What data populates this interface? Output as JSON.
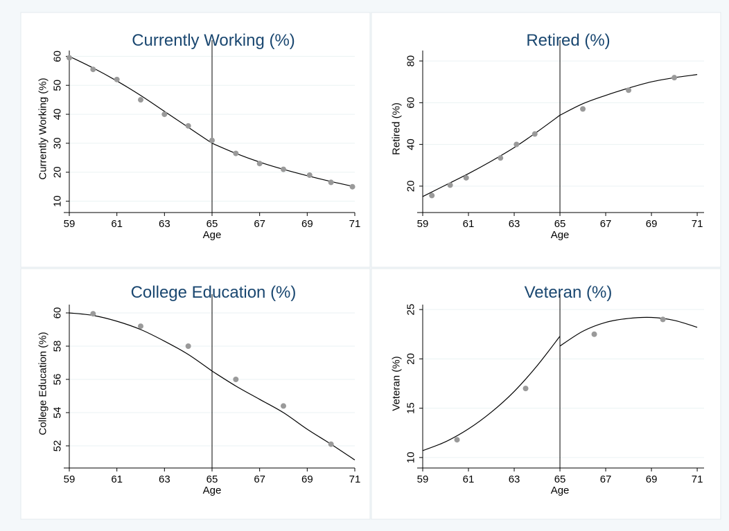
{
  "chart_data": [
    {
      "type": "scatter",
      "title": "Currently Working (%)",
      "xlabel": "Age",
      "ylabel": "Currently Working (%)",
      "xlim": [
        59,
        71
      ],
      "ylim": [
        8,
        62
      ],
      "xticks": [
        59,
        61,
        63,
        65,
        67,
        69,
        71
      ],
      "yticks": [
        10,
        20,
        30,
        40,
        50,
        60
      ],
      "grid": true,
      "cutoff": 65,
      "points": [
        [
          59.0,
          59.5
        ],
        [
          60.0,
          55.5
        ],
        [
          61.0,
          52.0
        ],
        [
          62.0,
          45.0
        ],
        [
          63.0,
          40.0
        ],
        [
          64.0,
          36.0
        ],
        [
          65.0,
          31.0
        ],
        [
          66.0,
          26.5
        ],
        [
          67.0,
          23.0
        ],
        [
          68.0,
          21.0
        ],
        [
          69.1,
          19.0
        ],
        [
          70.0,
          16.5
        ],
        [
          70.9,
          15.0
        ]
      ],
      "fit_left": [
        [
          59,
          60.0
        ],
        [
          60,
          56.0
        ],
        [
          61,
          51.5
        ],
        [
          62,
          46.5
        ],
        [
          63,
          41.0
        ],
        [
          64,
          35.5
        ],
        [
          65,
          30.0
        ]
      ],
      "fit_right": [
        [
          65,
          30.0
        ],
        [
          66,
          26.5
        ],
        [
          67,
          23.5
        ],
        [
          68,
          21.0
        ],
        [
          69,
          18.8
        ],
        [
          70,
          16.8
        ],
        [
          71,
          15.0
        ]
      ]
    },
    {
      "type": "scatter",
      "title": "Retired (%)",
      "xlabel": "Age",
      "ylabel": "Retired (%)",
      "xlim": [
        59,
        71.3
      ],
      "ylim": [
        10,
        85
      ],
      "xticks": [
        59,
        61,
        63,
        65,
        67,
        69,
        71
      ],
      "yticks": [
        20,
        40,
        60,
        80
      ],
      "grid": true,
      "cutoff": 65,
      "points": [
        [
          59.4,
          15.5
        ],
        [
          60.2,
          20.5
        ],
        [
          60.9,
          24.0
        ],
        [
          62.4,
          33.5
        ],
        [
          63.1,
          40.0
        ],
        [
          63.9,
          45.0
        ],
        [
          66.0,
          57.0
        ],
        [
          68.0,
          66.0
        ],
        [
          70.0,
          72.0
        ]
      ],
      "fit_left": [
        [
          59,
          15.0
        ],
        [
          60,
          20.5
        ],
        [
          61,
          26.0
        ],
        [
          62,
          32.0
        ],
        [
          63,
          38.5
        ],
        [
          64,
          46.0
        ],
        [
          65,
          54.0
        ]
      ],
      "fit_right": [
        [
          65,
          54.0
        ],
        [
          66,
          59.5
        ],
        [
          67,
          63.5
        ],
        [
          68,
          67.0
        ],
        [
          69,
          70.0
        ],
        [
          70,
          72.0
        ],
        [
          71,
          73.5
        ]
      ]
    },
    {
      "type": "scatter",
      "title": "College Education (%)",
      "xlabel": "Age",
      "ylabel": "College Education (%)",
      "xlim": [
        59,
        71
      ],
      "ylim": [
        51,
        60.5
      ],
      "xticks": [
        59,
        61,
        63,
        65,
        67,
        69,
        71
      ],
      "yticks": [
        52,
        54,
        56,
        58,
        60
      ],
      "grid": true,
      "cutoff": 65,
      "points": [
        [
          60.0,
          59.95
        ],
        [
          62.0,
          59.2
        ],
        [
          64.0,
          58.0
        ],
        [
          66.0,
          56.0
        ],
        [
          68.0,
          54.4
        ],
        [
          70.0,
          52.1
        ]
      ],
      "fit_left": [
        [
          59,
          60.0
        ],
        [
          60,
          59.85
        ],
        [
          61,
          59.5
        ],
        [
          62,
          59.0
        ],
        [
          63,
          58.3
        ],
        [
          64,
          57.5
        ],
        [
          65,
          56.5
        ]
      ],
      "fit_right": [
        [
          65,
          56.5
        ],
        [
          66,
          55.6
        ],
        [
          67,
          54.8
        ],
        [
          68,
          54.0
        ],
        [
          69,
          53.0
        ],
        [
          70,
          52.1
        ],
        [
          71,
          51.15
        ]
      ]
    },
    {
      "type": "scatter",
      "title": "Veteran (%)",
      "xlabel": "Age",
      "ylabel": "Veteran (%)",
      "xlim": [
        59,
        71.3
      ],
      "ylim": [
        9.5,
        25.5
      ],
      "xticks": [
        59,
        61,
        63,
        65,
        67,
        69,
        71
      ],
      "yticks": [
        10,
        15,
        20,
        25
      ],
      "grid": true,
      "cutoff": 65,
      "points": [
        [
          60.5,
          11.8
        ],
        [
          63.5,
          17.0
        ],
        [
          66.5,
          22.5
        ],
        [
          69.5,
          24.0
        ]
      ],
      "fit_left": [
        [
          59,
          10.7
        ],
        [
          60,
          11.6
        ],
        [
          61,
          12.9
        ],
        [
          62,
          14.6
        ],
        [
          63,
          16.7
        ],
        [
          64,
          19.3
        ],
        [
          65,
          22.3
        ]
      ],
      "fit_right": [
        [
          65,
          21.3
        ],
        [
          66,
          22.8
        ],
        [
          67,
          23.7
        ],
        [
          68,
          24.1
        ],
        [
          69,
          24.2
        ],
        [
          70,
          23.9
        ],
        [
          71,
          23.2
        ]
      ]
    }
  ]
}
